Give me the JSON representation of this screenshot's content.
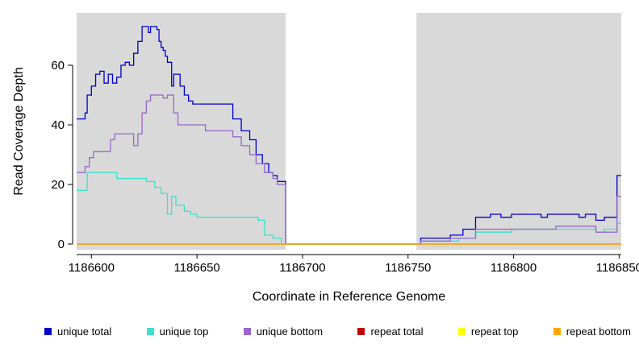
{
  "chart_data": {
    "type": "line",
    "style": "step",
    "title": "",
    "xlabel": "Coordinate in Reference Genome",
    "ylabel": "Read Coverage Depth",
    "xlim": [
      1186593,
      1186851
    ],
    "ylim": [
      0,
      77
    ],
    "xticks": [
      1186600,
      1186650,
      1186700,
      1186750,
      1186800,
      1186850
    ],
    "yticks": [
      0,
      20,
      40,
      60
    ],
    "grid": false,
    "legend_position": "bottom",
    "plot_background": "#D9D9D9",
    "gap_region": {
      "from": 1186692,
      "to": 1186754,
      "color": "#FFFFFF"
    },
    "series": [
      {
        "name": "unique total",
        "color": "#0000CD",
        "points": [
          [
            1186593,
            42
          ],
          [
            1186597,
            44
          ],
          [
            1186598,
            50
          ],
          [
            1186600,
            53
          ],
          [
            1186602,
            57
          ],
          [
            1186604,
            58
          ],
          [
            1186606,
            54
          ],
          [
            1186608,
            57
          ],
          [
            1186610,
            54
          ],
          [
            1186612,
            56
          ],
          [
            1186614,
            60
          ],
          [
            1186616,
            61
          ],
          [
            1186618,
            60
          ],
          [
            1186620,
            64
          ],
          [
            1186622,
            68
          ],
          [
            1186624,
            73
          ],
          [
            1186627,
            71
          ],
          [
            1186628,
            73
          ],
          [
            1186631,
            72
          ],
          [
            1186632,
            68
          ],
          [
            1186633,
            66
          ],
          [
            1186634,
            65
          ],
          [
            1186635,
            63
          ],
          [
            1186636,
            61
          ],
          [
            1186638,
            53
          ],
          [
            1186639,
            57
          ],
          [
            1186642,
            53
          ],
          [
            1186644,
            50
          ],
          [
            1186646,
            48
          ],
          [
            1186648,
            47
          ],
          [
            1186667,
            42
          ],
          [
            1186671,
            38
          ],
          [
            1186675,
            35
          ],
          [
            1186678,
            30
          ],
          [
            1186681,
            27
          ],
          [
            1186684,
            24
          ],
          [
            1186686,
            23
          ],
          [
            1186688,
            21
          ],
          [
            1186692,
            0
          ],
          [
            1186756,
            2
          ],
          [
            1186770,
            3
          ],
          [
            1186776,
            5
          ],
          [
            1186782,
            9
          ],
          [
            1186789,
            10
          ],
          [
            1186794,
            9
          ],
          [
            1186799,
            10
          ],
          [
            1186813,
            9
          ],
          [
            1186816,
            10
          ],
          [
            1186831,
            9
          ],
          [
            1186834,
            10
          ],
          [
            1186839,
            8
          ],
          [
            1186843,
            9
          ],
          [
            1186849,
            23
          ]
        ]
      },
      {
        "name": "unique top",
        "color": "#40E0D0",
        "points": [
          [
            1186593,
            18
          ],
          [
            1186598,
            24
          ],
          [
            1186612,
            22
          ],
          [
            1186626,
            21
          ],
          [
            1186630,
            19
          ],
          [
            1186633,
            17
          ],
          [
            1186636,
            10
          ],
          [
            1186638,
            16
          ],
          [
            1186640,
            13
          ],
          [
            1186644,
            11
          ],
          [
            1186647,
            10
          ],
          [
            1186650,
            9
          ],
          [
            1186679,
            8
          ],
          [
            1186682,
            3
          ],
          [
            1186686,
            2
          ],
          [
            1186690,
            0
          ],
          [
            1186756,
            1
          ],
          [
            1186774,
            2
          ],
          [
            1186782,
            4
          ],
          [
            1186799,
            5
          ],
          [
            1186839,
            4
          ],
          [
            1186843,
            5
          ],
          [
            1186849,
            7
          ]
        ]
      },
      {
        "name": "unique bottom",
        "color": "#9966CC",
        "points": [
          [
            1186593,
            24
          ],
          [
            1186597,
            26
          ],
          [
            1186599,
            29
          ],
          [
            1186601,
            31
          ],
          [
            1186609,
            35
          ],
          [
            1186611,
            37
          ],
          [
            1186620,
            33
          ],
          [
            1186622,
            37
          ],
          [
            1186624,
            44
          ],
          [
            1186626,
            48
          ],
          [
            1186628,
            50
          ],
          [
            1186634,
            49
          ],
          [
            1186636,
            50
          ],
          [
            1186639,
            44
          ],
          [
            1186641,
            40
          ],
          [
            1186654,
            38
          ],
          [
            1186667,
            36
          ],
          [
            1186671,
            33
          ],
          [
            1186675,
            30
          ],
          [
            1186678,
            27
          ],
          [
            1186682,
            24
          ],
          [
            1186686,
            22
          ],
          [
            1186688,
            20
          ],
          [
            1186692,
            0
          ],
          [
            1186756,
            1
          ],
          [
            1186770,
            2
          ],
          [
            1186782,
            5
          ],
          [
            1186820,
            6
          ],
          [
            1186839,
            4
          ],
          [
            1186849,
            16
          ]
        ]
      },
      {
        "name": "repeat total",
        "color": "#C00000",
        "points": [
          [
            1186593,
            0
          ]
        ]
      },
      {
        "name": "repeat top",
        "color": "#FFFF00",
        "points": [
          [
            1186593,
            0
          ]
        ]
      },
      {
        "name": "repeat bottom",
        "color": "#FFA500",
        "points": [
          [
            1186593,
            0
          ]
        ]
      }
    ]
  }
}
